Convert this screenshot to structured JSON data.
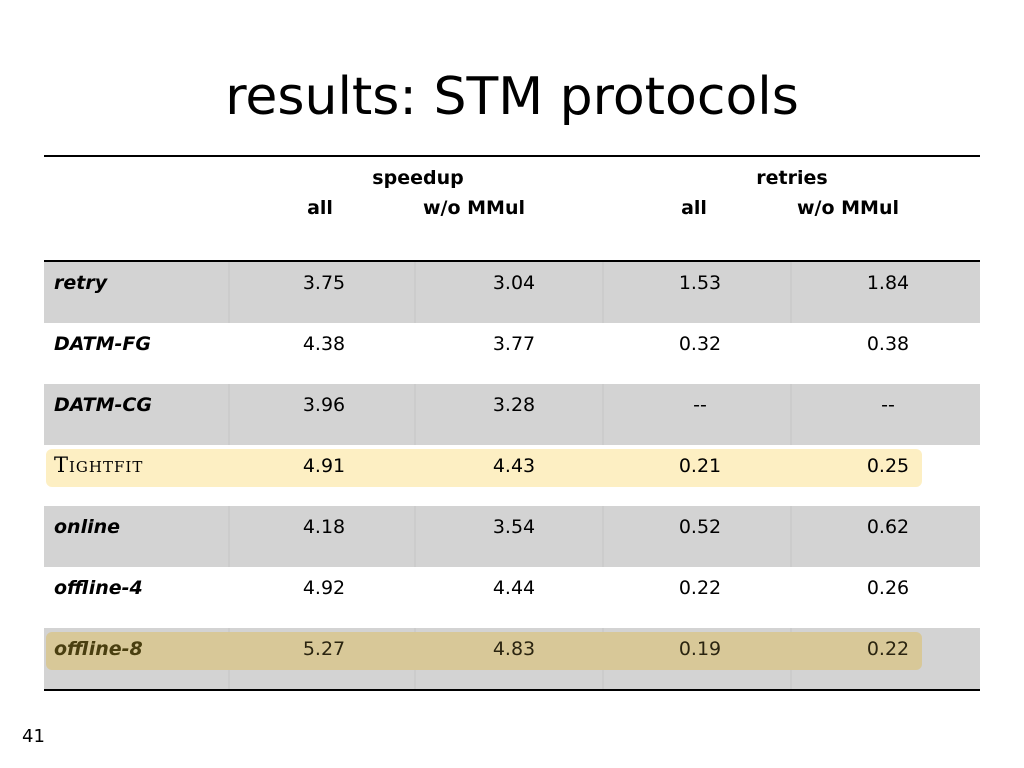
{
  "slide": {
    "title": "results: STM protocols",
    "page_number": "41"
  },
  "table": {
    "groups": [
      "speedup",
      "retries"
    ],
    "subcolumns": [
      "all",
      "w/o MMul",
      "all",
      "w/o MMul"
    ],
    "rows": [
      {
        "name": "retry",
        "values": [
          "3.75",
          "3.04",
          "1.53",
          "1.84"
        ],
        "shaded": true,
        "highlight": null
      },
      {
        "name": "DATM-FG",
        "values": [
          "4.38",
          "3.77",
          "0.32",
          "0.38"
        ],
        "shaded": false,
        "highlight": null
      },
      {
        "name": "DATM-CG",
        "values": [
          "3.96",
          "3.28",
          "--",
          "--"
        ],
        "shaded": true,
        "highlight": null
      },
      {
        "name": "Tightfit",
        "values": [
          "4.91",
          "4.43",
          "0.21",
          "0.25"
        ],
        "shaded": false,
        "highlight": "#fdefc3",
        "smallcaps": true
      },
      {
        "name": "online",
        "values": [
          "4.18",
          "3.54",
          "0.52",
          "0.62"
        ],
        "shaded": true,
        "highlight": null
      },
      {
        "name": "offline-4",
        "values": [
          "4.92",
          "4.44",
          "0.22",
          "0.26"
        ],
        "shaded": false,
        "highlight": null
      },
      {
        "name": "offline-8",
        "values": [
          "5.27",
          "4.83",
          "0.19",
          "0.22"
        ],
        "shaded": true,
        "highlight": "#d8c898",
        "name_color": "#4a3f10"
      }
    ]
  },
  "colors": {
    "shaded_row": "#d3d3d3",
    "tightfit_highlight": "#fdefc3",
    "offline8_highlight": "#d8c898"
  }
}
